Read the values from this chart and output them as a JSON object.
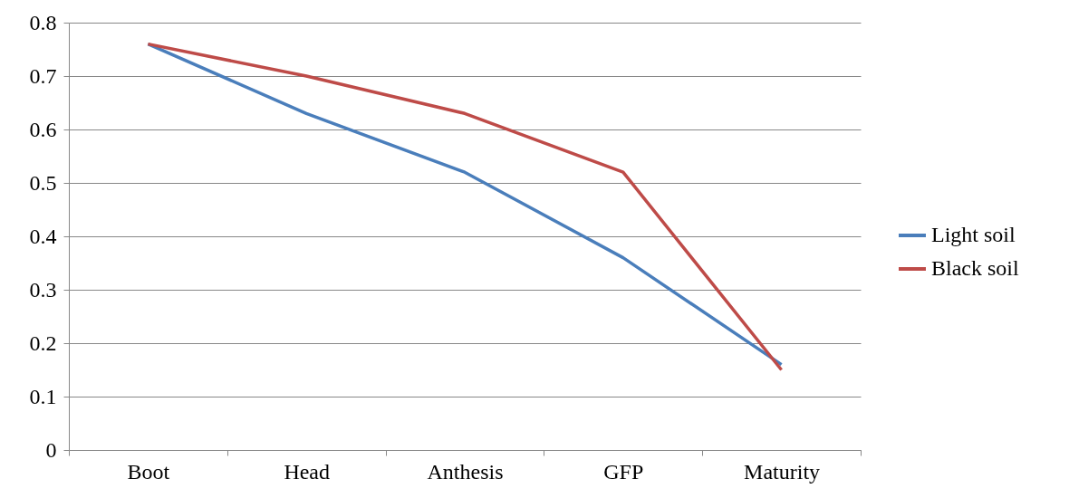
{
  "chart_data": {
    "type": "line",
    "categories": [
      "Boot",
      "Head",
      "Anthesis",
      "GFP",
      "Maturity"
    ],
    "series": [
      {
        "name": "Light soil",
        "color": "#4a7ebb",
        "values": [
          0.76,
          0.63,
          0.52,
          0.36,
          0.16
        ]
      },
      {
        "name": "Black soil",
        "color": "#be4b48",
        "values": [
          0.76,
          0.7,
          0.63,
          0.52,
          0.15
        ]
      }
    ],
    "ylim": [
      0,
      0.8
    ],
    "yticks": [
      0,
      0.1,
      0.2,
      0.3,
      0.4,
      0.5,
      0.6,
      0.7,
      0.8
    ],
    "grid": "y",
    "legend": "right",
    "marker": "none",
    "line_style": "solid"
  }
}
